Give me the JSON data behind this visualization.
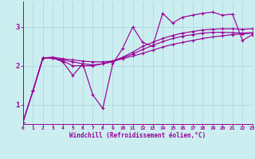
{
  "xlabel": "Windchill (Refroidissement éolien,°C)",
  "bg_color": "#cceef0",
  "grid_color": "#aad4d8",
  "line_color": "#990099",
  "xlim": [
    0,
    23
  ],
  "ylim": [
    0.5,
    3.65
  ],
  "yticks": [
    1,
    2,
    3
  ],
  "xticks": [
    0,
    1,
    2,
    3,
    4,
    5,
    6,
    7,
    8,
    9,
    10,
    11,
    12,
    13,
    14,
    15,
    16,
    17,
    18,
    19,
    20,
    21,
    22,
    23
  ],
  "line1_x": [
    0,
    1,
    2,
    3,
    4,
    5,
    6,
    7,
    8,
    9,
    10,
    11,
    12,
    13,
    14,
    15,
    16,
    17,
    18,
    19,
    20,
    21,
    22,
    23
  ],
  "line1_y": [
    0.55,
    1.35,
    2.2,
    2.22,
    2.18,
    2.15,
    2.12,
    2.1,
    2.1,
    2.12,
    2.18,
    2.25,
    2.32,
    2.4,
    2.48,
    2.55,
    2.6,
    2.65,
    2.7,
    2.74,
    2.77,
    2.8,
    2.82,
    2.84
  ],
  "line2_x": [
    0,
    1,
    2,
    3,
    4,
    5,
    6,
    7,
    8,
    9,
    10,
    11,
    12,
    13,
    14,
    15,
    16,
    17,
    18,
    19,
    20,
    21,
    22,
    23
  ],
  "line2_y": [
    0.55,
    1.35,
    2.2,
    2.2,
    2.15,
    2.1,
    2.05,
    2.02,
    2.05,
    2.12,
    2.22,
    2.35,
    2.5,
    2.6,
    2.7,
    2.78,
    2.84,
    2.88,
    2.92,
    2.94,
    2.95,
    2.95,
    2.94,
    2.95
  ],
  "line3_x": [
    1,
    2,
    3,
    4,
    5,
    6,
    7,
    8,
    9,
    10,
    11,
    12,
    13,
    14,
    15,
    16,
    17,
    18,
    19,
    20,
    21,
    22,
    23
  ],
  "line3_y": [
    1.35,
    2.2,
    2.2,
    2.1,
    1.75,
    2.05,
    1.25,
    0.9,
    2.05,
    2.45,
    3.0,
    2.6,
    2.5,
    3.35,
    3.1,
    3.25,
    3.3,
    3.35,
    3.38,
    3.3,
    3.33,
    2.65,
    2.8
  ],
  "line4_x": [
    0,
    1,
    2,
    3,
    4,
    5,
    6,
    7,
    8,
    9,
    10,
    11,
    12,
    13,
    14,
    15,
    16,
    17,
    18,
    19,
    20,
    21,
    22,
    23
  ],
  "line4_y": [
    0.55,
    1.35,
    2.2,
    2.2,
    2.12,
    2.0,
    2.0,
    2.0,
    2.05,
    2.1,
    2.2,
    2.3,
    2.42,
    2.52,
    2.62,
    2.7,
    2.76,
    2.8,
    2.84,
    2.86,
    2.86,
    2.85,
    2.84,
    2.85
  ]
}
